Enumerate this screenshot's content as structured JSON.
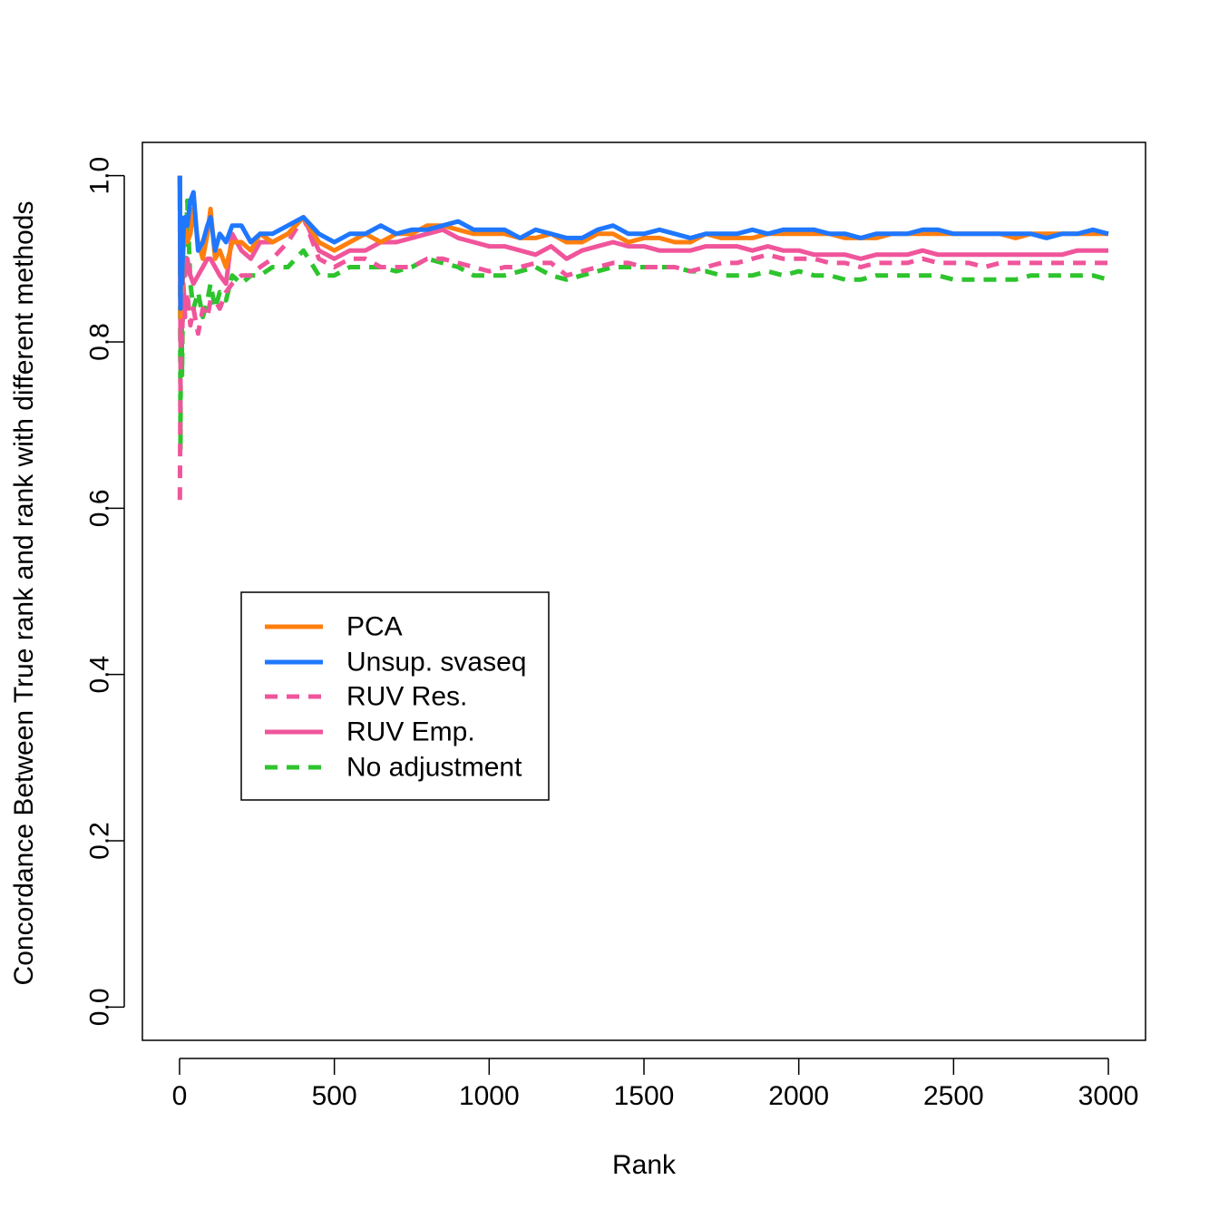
{
  "chart_data": {
    "type": "line",
    "title": "",
    "xlabel": "Rank",
    "ylabel": "Concordance Between True rank and rank with different methods",
    "xlim": [
      -120,
      3120
    ],
    "ylim": [
      -0.04,
      1.04
    ],
    "xticks": [
      0,
      500,
      1000,
      1500,
      2000,
      2500,
      3000
    ],
    "yticks": [
      0.0,
      0.2,
      0.4,
      0.6,
      0.8,
      1.0
    ],
    "xtick_labels": [
      "0",
      "500",
      "1000",
      "1500",
      "2000",
      "2500",
      "3000"
    ],
    "ytick_labels": [
      "0.0",
      "0.2",
      "0.4",
      "0.6",
      "0.8",
      "1.0"
    ],
    "grid": false,
    "legend_position": "center-left",
    "series": [
      {
        "name": "PCA",
        "color": "#FF7F0E",
        "dash": "solid",
        "x": [
          1,
          3,
          5,
          8,
          12,
          18,
          25,
          35,
          45,
          60,
          75,
          90,
          100,
          115,
          130,
          150,
          170,
          200,
          230,
          260,
          300,
          350,
          400,
          450,
          500,
          550,
          600,
          650,
          700,
          750,
          800,
          850,
          900,
          950,
          1000,
          1050,
          1100,
          1150,
          1200,
          1250,
          1300,
          1350,
          1400,
          1450,
          1500,
          1550,
          1600,
          1650,
          1700,
          1750,
          1800,
          1850,
          1900,
          1950,
          2000,
          2050,
          2100,
          2150,
          2200,
          2250,
          2300,
          2350,
          2400,
          2450,
          2500,
          2550,
          2600,
          2650,
          2700,
          2750,
          2800,
          2850,
          2900,
          2950,
          3000
        ],
        "y": [
          1.0,
          0.83,
          0.95,
          0.86,
          0.91,
          0.94,
          0.92,
          0.93,
          0.96,
          0.92,
          0.9,
          0.93,
          0.96,
          0.9,
          0.91,
          0.89,
          0.92,
          0.92,
          0.91,
          0.93,
          0.92,
          0.93,
          0.95,
          0.92,
          0.91,
          0.92,
          0.93,
          0.92,
          0.93,
          0.93,
          0.94,
          0.94,
          0.935,
          0.93,
          0.93,
          0.93,
          0.925,
          0.925,
          0.93,
          0.92,
          0.92,
          0.93,
          0.93,
          0.92,
          0.925,
          0.925,
          0.92,
          0.92,
          0.93,
          0.925,
          0.925,
          0.925,
          0.93,
          0.93,
          0.93,
          0.93,
          0.93,
          0.925,
          0.925,
          0.925,
          0.93,
          0.93,
          0.93,
          0.93,
          0.93,
          0.93,
          0.93,
          0.93,
          0.925,
          0.93,
          0.93,
          0.93,
          0.93,
          0.93,
          0.93
        ]
      },
      {
        "name": "Unsup. svaseq",
        "color": "#1F77FF",
        "dash": "solid",
        "x": [
          1,
          3,
          5,
          8,
          12,
          18,
          25,
          35,
          45,
          60,
          75,
          90,
          100,
          115,
          130,
          150,
          170,
          200,
          230,
          260,
          300,
          350,
          400,
          450,
          500,
          550,
          600,
          650,
          700,
          750,
          800,
          850,
          900,
          950,
          1000,
          1050,
          1100,
          1150,
          1200,
          1250,
          1300,
          1350,
          1400,
          1450,
          1500,
          1550,
          1600,
          1650,
          1700,
          1750,
          1800,
          1850,
          1900,
          1950,
          2000,
          2050,
          2100,
          2150,
          2200,
          2250,
          2300,
          2350,
          2400,
          2450,
          2500,
          2550,
          2600,
          2650,
          2700,
          2750,
          2800,
          2850,
          2900,
          2950,
          3000
        ],
        "y": [
          1.0,
          0.84,
          0.95,
          0.87,
          0.93,
          0.95,
          0.94,
          0.97,
          0.98,
          0.91,
          0.92,
          0.94,
          0.95,
          0.91,
          0.93,
          0.92,
          0.94,
          0.94,
          0.92,
          0.93,
          0.93,
          0.94,
          0.95,
          0.93,
          0.92,
          0.93,
          0.93,
          0.94,
          0.93,
          0.935,
          0.935,
          0.94,
          0.945,
          0.935,
          0.935,
          0.935,
          0.925,
          0.935,
          0.93,
          0.925,
          0.925,
          0.935,
          0.94,
          0.93,
          0.93,
          0.935,
          0.93,
          0.925,
          0.93,
          0.93,
          0.93,
          0.935,
          0.93,
          0.935,
          0.935,
          0.935,
          0.93,
          0.93,
          0.925,
          0.93,
          0.93,
          0.93,
          0.935,
          0.935,
          0.93,
          0.93,
          0.93,
          0.93,
          0.93,
          0.93,
          0.925,
          0.93,
          0.93,
          0.935,
          0.93
        ]
      },
      {
        "name": "RUV Res.",
        "color": "#F0559B",
        "dash": "dashed",
        "x": [
          1,
          3,
          5,
          8,
          12,
          18,
          25,
          35,
          45,
          60,
          75,
          90,
          100,
          115,
          130,
          150,
          170,
          200,
          230,
          260,
          300,
          350,
          400,
          450,
          500,
          550,
          600,
          650,
          700,
          750,
          800,
          850,
          900,
          950,
          1000,
          1050,
          1100,
          1150,
          1200,
          1250,
          1300,
          1350,
          1400,
          1450,
          1500,
          1550,
          1600,
          1650,
          1700,
          1750,
          1800,
          1850,
          1900,
          1950,
          2000,
          2050,
          2100,
          2150,
          2200,
          2250,
          2300,
          2350,
          2400,
          2450,
          2500,
          2550,
          2600,
          2650,
          2700,
          2750,
          2800,
          2850,
          2900,
          2950,
          3000
        ],
        "y": [
          0.61,
          0.75,
          0.88,
          0.8,
          0.87,
          0.83,
          0.86,
          0.82,
          0.84,
          0.81,
          0.84,
          0.83,
          0.85,
          0.85,
          0.84,
          0.86,
          0.87,
          0.88,
          0.88,
          0.89,
          0.9,
          0.92,
          0.95,
          0.9,
          0.89,
          0.9,
          0.9,
          0.89,
          0.89,
          0.89,
          0.9,
          0.9,
          0.895,
          0.89,
          0.885,
          0.89,
          0.89,
          0.895,
          0.895,
          0.88,
          0.885,
          0.89,
          0.895,
          0.895,
          0.89,
          0.89,
          0.89,
          0.885,
          0.89,
          0.895,
          0.895,
          0.9,
          0.905,
          0.9,
          0.9,
          0.9,
          0.895,
          0.895,
          0.89,
          0.895,
          0.895,
          0.895,
          0.9,
          0.895,
          0.895,
          0.895,
          0.89,
          0.895,
          0.895,
          0.895,
          0.895,
          0.895,
          0.895,
          0.895,
          0.895
        ]
      },
      {
        "name": "RUV Emp.",
        "color": "#F0559B",
        "dash": "solid",
        "x": [
          1,
          3,
          5,
          8,
          12,
          18,
          25,
          35,
          45,
          60,
          75,
          90,
          100,
          115,
          130,
          150,
          170,
          200,
          230,
          260,
          300,
          350,
          400,
          450,
          500,
          550,
          600,
          650,
          700,
          750,
          800,
          850,
          900,
          950,
          1000,
          1050,
          1100,
          1150,
          1200,
          1250,
          1300,
          1350,
          1400,
          1450,
          1500,
          1550,
          1600,
          1650,
          1700,
          1750,
          1800,
          1850,
          1900,
          1950,
          2000,
          2050,
          2100,
          2150,
          2200,
          2250,
          2300,
          2350,
          2400,
          2450,
          2500,
          2550,
          2600,
          2650,
          2700,
          2750,
          2800,
          2850,
          2900,
          2950,
          3000
        ],
        "y": [
          1.0,
          0.8,
          0.93,
          0.85,
          0.9,
          0.88,
          0.9,
          0.88,
          0.87,
          0.88,
          0.89,
          0.9,
          0.9,
          0.89,
          0.88,
          0.87,
          0.93,
          0.91,
          0.9,
          0.92,
          0.92,
          0.93,
          0.95,
          0.91,
          0.9,
          0.91,
          0.91,
          0.92,
          0.92,
          0.925,
          0.93,
          0.935,
          0.925,
          0.92,
          0.915,
          0.915,
          0.91,
          0.905,
          0.915,
          0.9,
          0.91,
          0.915,
          0.92,
          0.915,
          0.915,
          0.91,
          0.91,
          0.91,
          0.915,
          0.915,
          0.915,
          0.91,
          0.915,
          0.91,
          0.91,
          0.905,
          0.905,
          0.905,
          0.9,
          0.905,
          0.905,
          0.905,
          0.91,
          0.905,
          0.905,
          0.905,
          0.905,
          0.905,
          0.905,
          0.905,
          0.905,
          0.905,
          0.91,
          0.91,
          0.91
        ]
      },
      {
        "name": "No adjustment",
        "color": "#2DC42D",
        "dash": "dashed",
        "x": [
          1,
          3,
          5,
          8,
          12,
          18,
          25,
          35,
          45,
          60,
          75,
          90,
          100,
          115,
          130,
          150,
          170,
          200,
          230,
          260,
          300,
          350,
          400,
          450,
          500,
          550,
          600,
          650,
          700,
          750,
          800,
          850,
          900,
          950,
          1000,
          1050,
          1100,
          1150,
          1200,
          1250,
          1300,
          1350,
          1400,
          1450,
          1500,
          1550,
          1600,
          1650,
          1700,
          1750,
          1800,
          1850,
          1900,
          1950,
          2000,
          2050,
          2100,
          2150,
          2200,
          2250,
          2300,
          2350,
          2400,
          2450,
          2500,
          2550,
          2600,
          2650,
          2700,
          2750,
          2800,
          2850,
          2900,
          2950,
          3000
        ],
        "y": [
          1.0,
          0.67,
          0.95,
          0.76,
          0.9,
          0.88,
          0.97,
          0.87,
          0.84,
          0.86,
          0.83,
          0.85,
          0.87,
          0.84,
          0.86,
          0.85,
          0.88,
          0.87,
          0.88,
          0.88,
          0.89,
          0.89,
          0.91,
          0.88,
          0.88,
          0.89,
          0.89,
          0.89,
          0.885,
          0.89,
          0.9,
          0.895,
          0.89,
          0.88,
          0.88,
          0.88,
          0.885,
          0.89,
          0.88,
          0.875,
          0.88,
          0.885,
          0.89,
          0.89,
          0.89,
          0.89,
          0.89,
          0.885,
          0.885,
          0.88,
          0.88,
          0.88,
          0.885,
          0.88,
          0.885,
          0.88,
          0.88,
          0.875,
          0.875,
          0.88,
          0.88,
          0.88,
          0.88,
          0.88,
          0.875,
          0.875,
          0.875,
          0.875,
          0.875,
          0.88,
          0.88,
          0.88,
          0.88,
          0.88,
          0.875
        ]
      }
    ]
  }
}
